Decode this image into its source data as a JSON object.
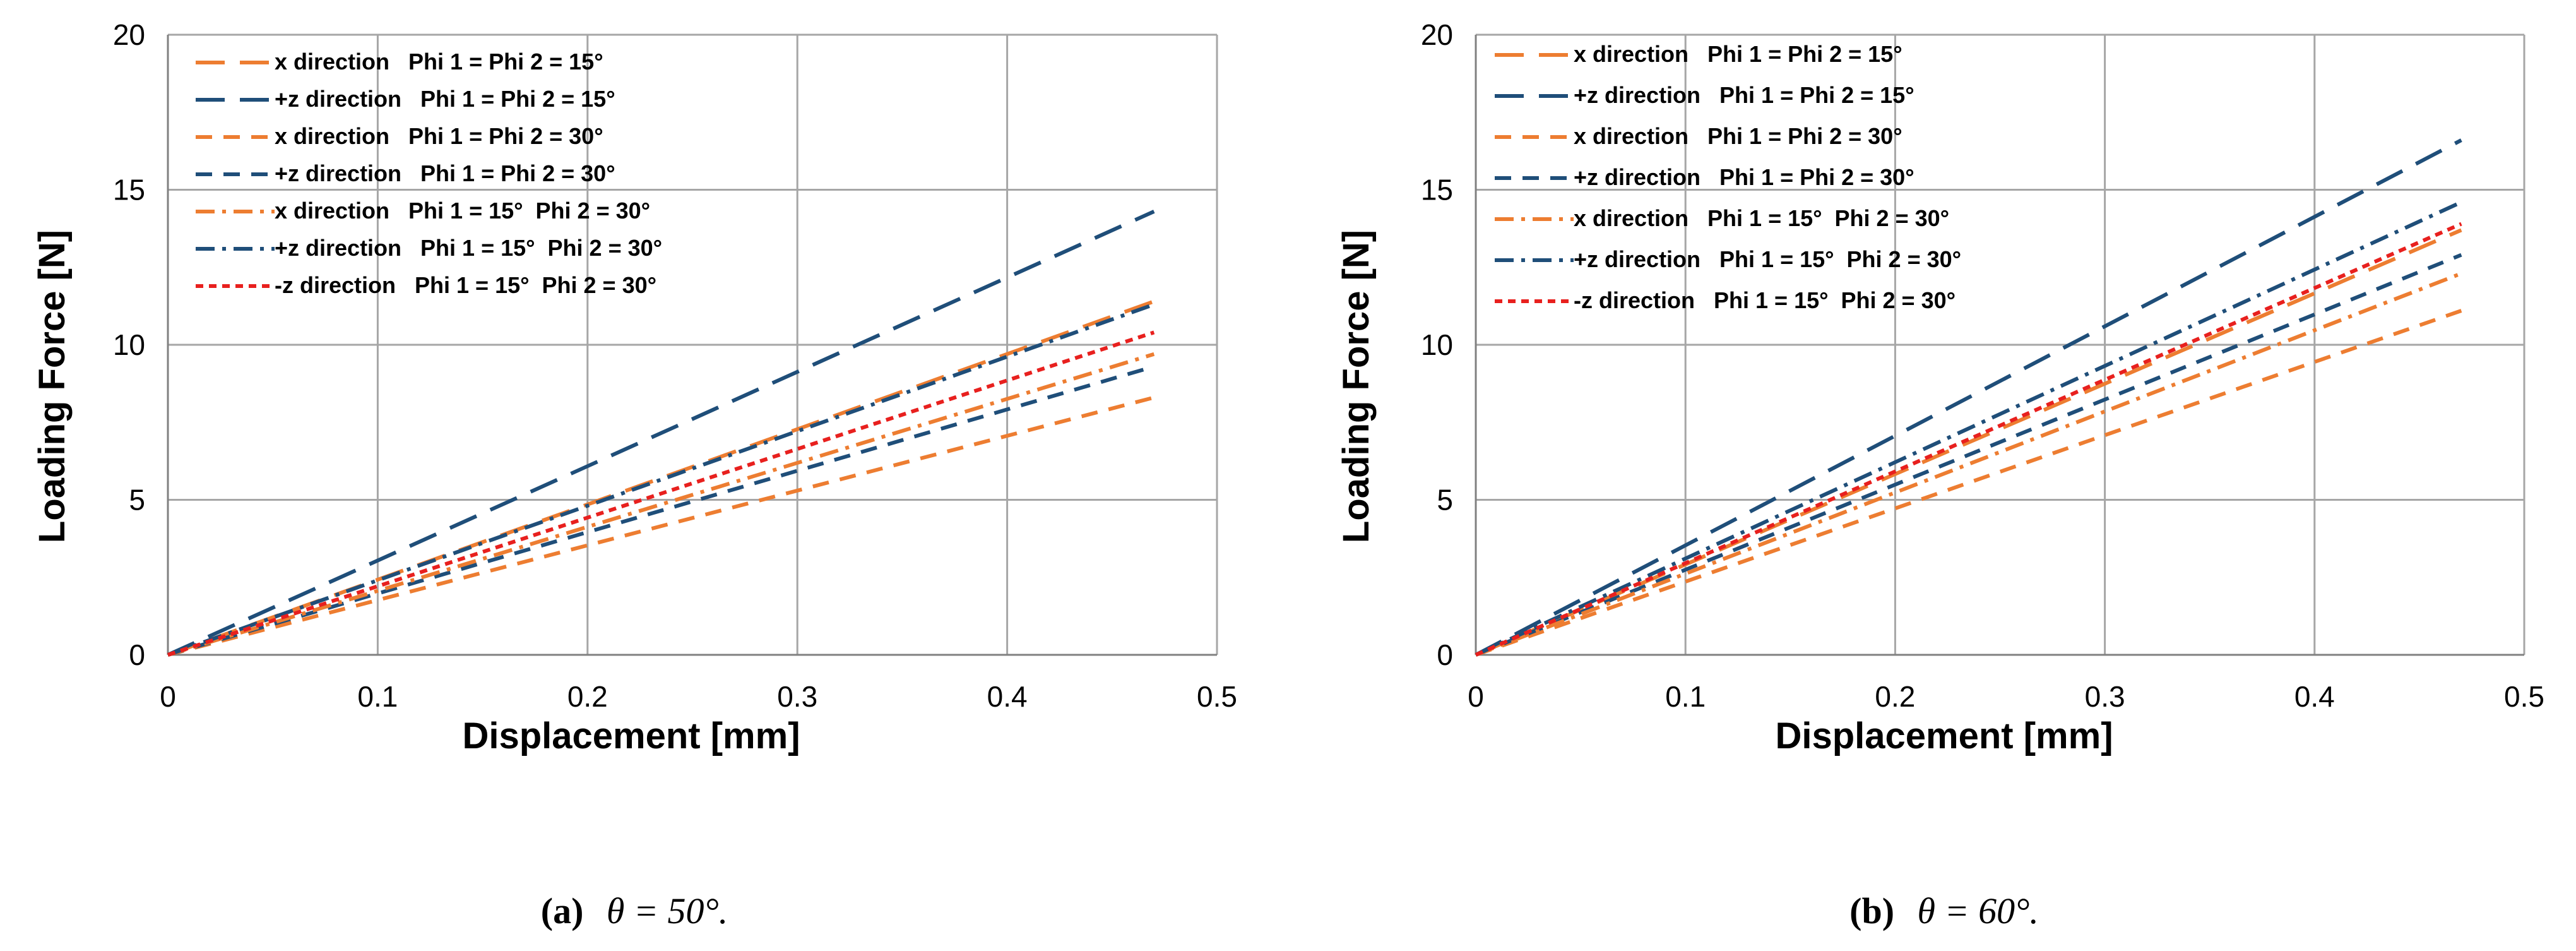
{
  "colors": {
    "orange": "#ED7D31",
    "navy": "#1F4E79",
    "red": "#E8201E",
    "grid": "#A6A6A6",
    "axis": "#808080"
  },
  "chart_data": [
    {
      "type": "line",
      "caption_label": "(a)",
      "caption_text": "θ = 50°.",
      "xlabel": "Displacement [mm]",
      "ylabel": "Loading Force [N]",
      "xlim": [
        0,
        0.5
      ],
      "ylim": [
        0,
        20
      ],
      "xticks": [
        "0",
        "0.1",
        "0.2",
        "0.3",
        "0.4",
        "0.5"
      ],
      "yticks": [
        "0",
        "5",
        "10",
        "15",
        "20"
      ],
      "grid": true,
      "legend_position": "top-left",
      "series": [
        {
          "name": "x direction   Phi 1 = Phi 2 = 15°",
          "color": "orange",
          "dash": "longdash",
          "x": [
            0,
            0.47
          ],
          "y": [
            0,
            11.4
          ]
        },
        {
          "name": "+z direction   Phi 1 = Phi 2 = 15°",
          "color": "navy",
          "dash": "longdash",
          "x": [
            0,
            0.47
          ],
          "y": [
            0,
            14.3
          ]
        },
        {
          "name": "x direction   Phi 1 = Phi 2 = 30°",
          "color": "orange",
          "dash": "dash",
          "x": [
            0,
            0.47
          ],
          "y": [
            0,
            8.3
          ]
        },
        {
          "name": "+z direction   Phi 1 = Phi 2 = 30°",
          "color": "navy",
          "dash": "dash",
          "x": [
            0,
            0.47
          ],
          "y": [
            0,
            9.3
          ]
        },
        {
          "name": "x direction   Phi 1 = 15°  Phi 2 = 30°",
          "color": "orange",
          "dash": "dashdot",
          "x": [
            0,
            0.47
          ],
          "y": [
            0,
            9.7
          ]
        },
        {
          "name": "+z direction   Phi 1 = 15°  Phi 2 = 30°",
          "color": "navy",
          "dash": "dashdot",
          "x": [
            0,
            0.47
          ],
          "y": [
            0,
            11.3
          ]
        },
        {
          "name": "-z direction   Phi 1 = 15°  Phi 2 = 30°",
          "color": "red",
          "dash": "shortdash",
          "x": [
            0,
            0.47
          ],
          "y": [
            0,
            10.4
          ]
        }
      ]
    },
    {
      "type": "line",
      "caption_label": "(b)",
      "caption_text": "θ = 60°.",
      "xlabel": "Displacement [mm]",
      "ylabel": "Loading Force [N]",
      "xlim": [
        0,
        0.5
      ],
      "ylim": [
        0,
        20
      ],
      "xticks": [
        "0",
        "0.1",
        "0.2",
        "0.3",
        "0.4",
        "0.5"
      ],
      "yticks": [
        "0",
        "5",
        "10",
        "15",
        "20"
      ],
      "grid": true,
      "legend_position": "top-left",
      "series": [
        {
          "name": "x direction   Phi 1 = Phi 2 = 15°",
          "color": "orange",
          "dash": "longdash",
          "x": [
            0,
            0.47
          ],
          "y": [
            0,
            13.7
          ]
        },
        {
          "name": "+z direction   Phi 1 = Phi 2 = 15°",
          "color": "navy",
          "dash": "longdash",
          "x": [
            0,
            0.47
          ],
          "y": [
            0,
            16.6
          ]
        },
        {
          "name": "x direction   Phi 1 = Phi 2 = 30°",
          "color": "orange",
          "dash": "dash",
          "x": [
            0,
            0.47
          ],
          "y": [
            0,
            11.1
          ]
        },
        {
          "name": "+z direction   Phi 1 = Phi 2 = 30°",
          "color": "navy",
          "dash": "dash",
          "x": [
            0,
            0.47
          ],
          "y": [
            0,
            12.9
          ]
        },
        {
          "name": "x direction   Phi 1 = 15°  Phi 2 = 30°",
          "color": "orange",
          "dash": "dashdot",
          "x": [
            0,
            0.47
          ],
          "y": [
            0,
            12.3
          ]
        },
        {
          "name": "+z direction   Phi 1 = 15°  Phi 2 = 30°",
          "color": "navy",
          "dash": "dashdot",
          "x": [
            0,
            0.47
          ],
          "y": [
            0,
            14.6
          ]
        },
        {
          "name": "-z direction   Phi 1 = 15°  Phi 2 = 30°",
          "color": "red",
          "dash": "shortdash",
          "x": [
            0,
            0.47
          ],
          "y": [
            0,
            13.9
          ]
        }
      ]
    }
  ]
}
